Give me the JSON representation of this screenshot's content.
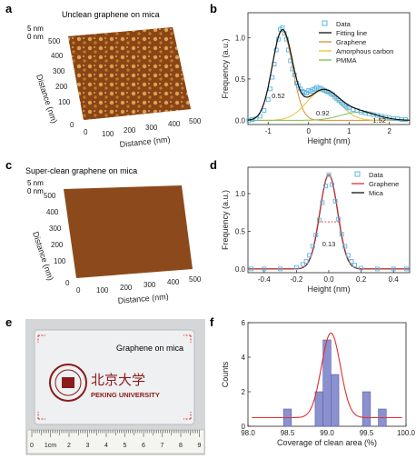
{
  "panels": {
    "a": {
      "letter": "a",
      "caption": "Unclean graphene on mica",
      "z_labels": [
        "5 nm",
        "0 nm"
      ],
      "y_label": "Distance (nm)",
      "x_label": "Distance (nm)",
      "ticks": [
        "0",
        "100",
        "200",
        "300",
        "400",
        "500"
      ],
      "surface": "rough"
    },
    "c": {
      "letter": "c",
      "caption": "Super-clean graphene on mica",
      "z_labels": [
        "5 nm",
        "0 nm"
      ],
      "y_label": "Distance (nm)",
      "x_label": "Distance (nm)",
      "ticks": [
        "0",
        "100",
        "200",
        "300",
        "400",
        "500"
      ],
      "surface": "smooth"
    },
    "e": {
      "letter": "e",
      "sample_label": "Graphene on mica",
      "chinese_name": "北京大学",
      "university": "PEKING UNIVERSITY",
      "ruler_labels": [
        "0",
        "1cm",
        "2",
        "3",
        "4",
        "5",
        "6",
        "7",
        "8",
        "9"
      ]
    }
  },
  "chart_data": [
    {
      "id": "b",
      "letter": "b",
      "type": "line",
      "xlabel": "Height (nm)",
      "ylabel": "Frequency (a.u.)",
      "xlim": [
        -1.5,
        2.5
      ],
      "ylim": [
        -0.05,
        1.3
      ],
      "xticks": [
        -1,
        0,
        1,
        2
      ],
      "yticks": [
        0.0,
        0.5,
        1.0
      ],
      "legend": {
        "placement": "top-right",
        "entries": [
          {
            "name": "Data",
            "style": "square",
            "color": "#5bb5e0"
          },
          {
            "name": "Fitting line",
            "style": "line",
            "color": "#111111"
          },
          {
            "name": "Graphene",
            "style": "line",
            "color": "#e08a2e"
          },
          {
            "name": "Amorphous carbon",
            "style": "line",
            "color": "#e3c53a"
          },
          {
            "name": "PMMA",
            "style": "line",
            "color": "#7fbf4d"
          }
        ]
      },
      "peaks": [
        {
          "name": "Graphene",
          "center": -0.65,
          "amplitude": 1.08,
          "sigma": 0.25,
          "color": "#e08a2e"
        },
        {
          "name": "Amorphous carbon",
          "center": 0.35,
          "amplitude": 0.36,
          "sigma": 0.4,
          "color": "#e3c53a"
        },
        {
          "name": "PMMA",
          "center": 1.25,
          "amplitude": 0.1,
          "sigma": 0.45,
          "color": "#7fbf4d"
        }
      ],
      "data_points": [
        [
          -1.48,
          0.0
        ],
        [
          -1.4,
          0.01
        ],
        [
          -1.3,
          0.02
        ],
        [
          -1.2,
          0.05
        ],
        [
          -1.1,
          0.12
        ],
        [
          -1.0,
          0.25
        ],
        [
          -0.95,
          0.38
        ],
        [
          -0.9,
          0.52
        ],
        [
          -0.85,
          0.68
        ],
        [
          -0.8,
          0.85
        ],
        [
          -0.75,
          0.98
        ],
        [
          -0.7,
          1.1
        ],
        [
          -0.65,
          1.12
        ],
        [
          -0.6,
          1.05
        ],
        [
          -0.55,
          0.98
        ],
        [
          -0.5,
          0.85
        ],
        [
          -0.45,
          0.72
        ],
        [
          -0.4,
          0.62
        ],
        [
          -0.35,
          0.55
        ],
        [
          -0.3,
          0.45
        ],
        [
          -0.25,
          0.42
        ],
        [
          -0.2,
          0.38
        ],
        [
          -0.15,
          0.35
        ],
        [
          -0.1,
          0.34
        ],
        [
          -0.05,
          0.33
        ],
        [
          0.0,
          0.36
        ],
        [
          0.05,
          0.35
        ],
        [
          0.1,
          0.37
        ],
        [
          0.15,
          0.38
        ],
        [
          0.2,
          0.4
        ],
        [
          0.25,
          0.38
        ],
        [
          0.3,
          0.39
        ],
        [
          0.35,
          0.37
        ],
        [
          0.4,
          0.36
        ],
        [
          0.45,
          0.35
        ],
        [
          0.5,
          0.34
        ],
        [
          0.55,
          0.32
        ],
        [
          0.6,
          0.31
        ],
        [
          0.65,
          0.28
        ],
        [
          0.7,
          0.26
        ],
        [
          0.75,
          0.24
        ],
        [
          0.8,
          0.22
        ],
        [
          0.85,
          0.2
        ],
        [
          0.9,
          0.18
        ],
        [
          0.95,
          0.16
        ],
        [
          1.0,
          0.15
        ],
        [
          1.1,
          0.13
        ],
        [
          1.2,
          0.12
        ],
        [
          1.3,
          0.1
        ],
        [
          1.4,
          0.09
        ],
        [
          1.5,
          0.08
        ],
        [
          1.6,
          0.07
        ],
        [
          1.7,
          0.06
        ],
        [
          1.8,
          0.05
        ],
        [
          1.9,
          0.04
        ],
        [
          2.0,
          0.03
        ],
        [
          2.1,
          0.02
        ],
        [
          2.2,
          0.02
        ],
        [
          2.3,
          0.01
        ],
        [
          2.4,
          0.01
        ]
      ],
      "annotations": [
        {
          "text": "0.52",
          "x": -0.75,
          "y": 0.27
        },
        {
          "text": "0.92",
          "x": 0.35,
          "y": 0.06
        },
        {
          "text": "1.52",
          "x": 1.75,
          "y": -0.03
        }
      ]
    },
    {
      "id": "d",
      "letter": "d",
      "type": "line",
      "xlabel": "Height (nm)",
      "ylabel": "Frequency (a.u.)",
      "xlim": [
        -0.5,
        0.5
      ],
      "ylim": [
        -0.05,
        1.35
      ],
      "xticks": [
        -0.4,
        -0.2,
        0.0,
        0.2,
        0.4
      ],
      "yticks": [
        0.0,
        0.5,
        1.0
      ],
      "legend": {
        "placement": "top-right",
        "entries": [
          {
            "name": "Data",
            "style": "square",
            "color": "#5bb5e0"
          },
          {
            "name": "Graphene",
            "style": "line",
            "color": "#e03030"
          },
          {
            "name": "Mica",
            "style": "line",
            "color": "#111111"
          }
        ]
      },
      "peak": {
        "center": 0.0,
        "amplitude": 1.25,
        "sigma": 0.055
      },
      "data_points": [
        [
          -0.48,
          0.0
        ],
        [
          -0.4,
          0.0
        ],
        [
          -0.3,
          0.0
        ],
        [
          -0.2,
          0.02
        ],
        [
          -0.16,
          0.06
        ],
        [
          -0.14,
          0.1
        ],
        [
          -0.12,
          0.18
        ],
        [
          -0.1,
          0.3
        ],
        [
          -0.08,
          0.45
        ],
        [
          -0.06,
          0.65
        ],
        [
          -0.04,
          0.88
        ],
        [
          -0.02,
          1.1
        ],
        [
          0.0,
          1.25
        ],
        [
          0.02,
          1.12
        ],
        [
          0.04,
          0.9
        ],
        [
          0.06,
          0.66
        ],
        [
          0.08,
          0.46
        ],
        [
          0.1,
          0.3
        ],
        [
          0.12,
          0.18
        ],
        [
          0.14,
          0.1
        ],
        [
          0.16,
          0.05
        ],
        [
          0.2,
          0.01
        ],
        [
          0.3,
          0.0
        ],
        [
          0.4,
          0.0
        ],
        [
          0.48,
          0.0
        ]
      ],
      "annotations": [
        {
          "text": "0.13",
          "x": 0.0,
          "y": 0.3,
          "color": "#e03030"
        }
      ]
    },
    {
      "id": "f",
      "letter": "f",
      "type": "bar",
      "xlabel": "Coverage of clean area (%)",
      "ylabel": "Counts",
      "xlim": [
        98.0,
        100.0
      ],
      "ylim": [
        0,
        6
      ],
      "xticks": [
        98.0,
        98.5,
        99.0,
        99.5,
        100.0
      ],
      "yticks": [
        0,
        2,
        4,
        6
      ],
      "bin_width": 0.1,
      "bins": [
        {
          "x": 98.5,
          "count": 1
        },
        {
          "x": 98.9,
          "count": 2
        },
        {
          "x": 99.0,
          "count": 5
        },
        {
          "x": 99.1,
          "count": 3
        },
        {
          "x": 99.5,
          "count": 2
        },
        {
          "x": 99.7,
          "count": 1
        }
      ],
      "fit": {
        "center": 99.05,
        "amplitude": 4.9,
        "sigma": 0.12,
        "baseline": 0.5,
        "color": "#e03030"
      },
      "bar_color": "#8b90cf"
    }
  ]
}
